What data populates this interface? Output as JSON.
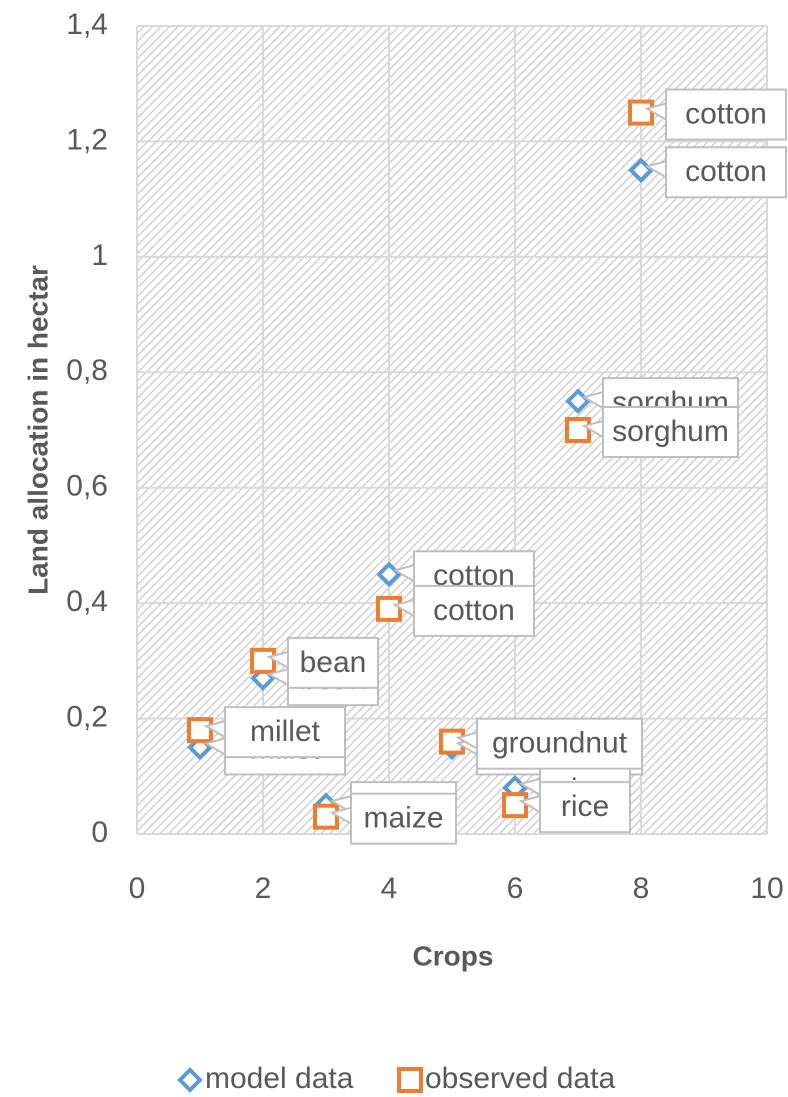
{
  "chart_data": {
    "type": "scatter",
    "x_label": "Crops",
    "y_label": "Land allocation in hectar",
    "xlim": [
      0,
      10
    ],
    "xticks": [
      0,
      2,
      4,
      6,
      8,
      10
    ],
    "ylim": [
      0,
      1.4
    ],
    "yticks": [
      0,
      {
        "value": 0.2,
        "label": "0,2"
      },
      {
        "value": 0.4,
        "label": "0,4"
      },
      {
        "value": 0.6,
        "label": "0,6"
      },
      {
        "value": 0.8,
        "label": "0,8"
      },
      1,
      {
        "value": 1.2,
        "label": "1,2"
      },
      {
        "value": 1.4,
        "label": "1,4"
      }
    ],
    "grid": true,
    "legend": "bottom",
    "series": [
      {
        "name": "model data",
        "color": "#5b9bd5",
        "marker": "diamond",
        "x": [
          1,
          2,
          3,
          4,
          5,
          6,
          7,
          8
        ],
        "values": [
          0.15,
          0.27,
          0.05,
          0.45,
          0.15,
          0.08,
          0.75,
          1.15
        ],
        "labels": [
          "millet",
          "bean",
          "maize",
          "cotton",
          "groundnut",
          "rice",
          "sorghum",
          "cotton"
        ]
      },
      {
        "name": "observed data",
        "color": "#ed7d31",
        "marker": "square",
        "x": [
          1,
          2,
          3,
          4,
          5,
          6,
          7,
          8
        ],
        "values": [
          0.18,
          0.3,
          0.03,
          0.39,
          0.16,
          0.05,
          0.7,
          1.25
        ],
        "labels": [
          "millet",
          "bean",
          "maize",
          "cotton",
          "groundnut",
          "rice",
          "sorghum",
          "cotton"
        ]
      }
    ]
  }
}
